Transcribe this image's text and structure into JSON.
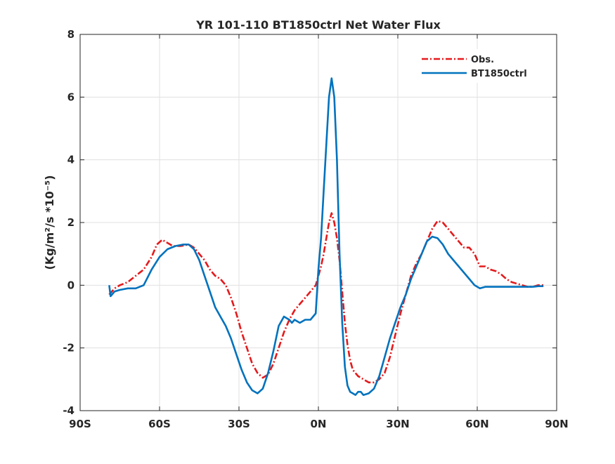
{
  "chart_data": {
    "type": "line",
    "title": "YR 101-110 BT1850ctrl  Net Water Flux",
    "xlabel": "",
    "ylabel": "(Kg/m²/s *10⁻⁵)",
    "xlim": [
      -90,
      90
    ],
    "ylim": [
      -4,
      8
    ],
    "x_ticks": [
      -90,
      -60,
      -30,
      0,
      30,
      60,
      90
    ],
    "x_tick_labels": [
      "90S",
      "60S",
      "30S",
      "0N",
      "30N",
      "60N",
      "90N"
    ],
    "y_ticks": [
      -4,
      -2,
      0,
      2,
      4,
      6,
      8
    ],
    "y_tick_labels": [
      "-4",
      "-2",
      "0",
      "2",
      "4",
      "6",
      "8"
    ],
    "grid": true,
    "legend_position": "top-right",
    "series": [
      {
        "name": "Obs.",
        "color": "#e41a1c",
        "style": "dashdot",
        "x": [
          -79,
          -77,
          -75,
          -72,
          -69,
          -66,
          -63,
          -61,
          -59,
          -57,
          -55,
          -52,
          -49,
          -47,
          -45,
          -43,
          -41,
          -39,
          -37,
          -35,
          -33,
          -31,
          -29,
          -27,
          -25,
          -23,
          -21,
          -19,
          -17,
          -15,
          -13,
          -11,
          -9,
          -7,
          -5,
          -3,
          -1,
          0,
          1,
          2,
          3,
          4,
          5,
          6,
          7,
          8,
          9,
          10,
          11,
          12,
          13,
          14,
          15,
          17,
          19,
          21,
          23,
          25,
          27,
          29,
          31,
          33,
          35,
          37,
          39,
          41,
          43,
          45,
          47,
          49,
          51,
          53,
          55,
          57,
          59,
          61,
          63,
          65,
          67,
          69,
          71,
          73,
          75,
          77,
          79,
          81,
          83,
          85
        ],
        "y": [
          -0.3,
          -0.1,
          0.0,
          0.1,
          0.3,
          0.5,
          0.9,
          1.3,
          1.45,
          1.35,
          1.25,
          1.25,
          1.3,
          1.2,
          1.0,
          0.8,
          0.5,
          0.3,
          0.2,
          0.0,
          -0.4,
          -0.9,
          -1.5,
          -2.0,
          -2.5,
          -2.8,
          -2.95,
          -2.85,
          -2.5,
          -2.0,
          -1.5,
          -1.1,
          -0.8,
          -0.6,
          -0.4,
          -0.2,
          0.0,
          0.3,
          0.6,
          1.0,
          1.5,
          2.0,
          2.3,
          2.0,
          1.5,
          0.8,
          -0.2,
          -1.2,
          -1.9,
          -2.4,
          -2.7,
          -2.8,
          -2.9,
          -3.0,
          -3.1,
          -3.1,
          -3.0,
          -2.8,
          -2.3,
          -1.6,
          -0.9,
          -0.3,
          0.3,
          0.7,
          1.0,
          1.4,
          1.8,
          2.05,
          2.0,
          1.8,
          1.6,
          1.4,
          1.2,
          1.2,
          1.0,
          0.6,
          0.6,
          0.5,
          0.45,
          0.35,
          0.2,
          0.1,
          0.05,
          0.0,
          -0.05,
          -0.05,
          0.0,
          0.0
        ]
      },
      {
        "name": "BT1850ctrl",
        "color": "#0072bd",
        "style": "solid",
        "x": [
          -79,
          -78.5,
          -77,
          -75,
          -72,
          -69,
          -66,
          -63,
          -60,
          -57,
          -54,
          -51,
          -49,
          -47,
          -45,
          -43,
          -41,
          -39,
          -37,
          -35,
          -33,
          -31,
          -29,
          -27,
          -25,
          -23,
          -21,
          -19,
          -17,
          -15,
          -13,
          -11,
          -10,
          -9,
          -7,
          -5,
          -3,
          -1,
          0,
          1,
          2,
          3,
          4,
          5,
          6,
          7,
          8,
          9,
          10,
          11,
          12,
          13,
          14,
          15,
          16,
          17,
          19,
          21,
          23,
          25,
          27,
          29,
          31,
          33,
          35,
          37,
          39,
          41,
          43,
          45,
          47,
          49,
          51,
          53,
          55,
          57,
          59,
          61,
          63,
          65,
          67,
          69,
          71,
          73,
          75,
          77,
          79,
          81,
          83,
          85
        ],
        "y": [
          0.0,
          -0.35,
          -0.2,
          -0.15,
          -0.1,
          -0.1,
          0.0,
          0.5,
          0.9,
          1.15,
          1.25,
          1.3,
          1.3,
          1.15,
          0.8,
          0.3,
          -0.2,
          -0.7,
          -1.0,
          -1.3,
          -1.7,
          -2.2,
          -2.7,
          -3.1,
          -3.35,
          -3.45,
          -3.3,
          -2.8,
          -2.1,
          -1.3,
          -1.0,
          -1.1,
          -1.2,
          -1.1,
          -1.2,
          -1.1,
          -1.1,
          -0.9,
          0.5,
          1.5,
          3.0,
          4.5,
          6.0,
          6.6,
          6.0,
          4.0,
          1.0,
          -1.2,
          -2.6,
          -3.2,
          -3.4,
          -3.45,
          -3.5,
          -3.4,
          -3.4,
          -3.5,
          -3.45,
          -3.3,
          -2.9,
          -2.3,
          -1.7,
          -1.2,
          -0.7,
          -0.3,
          0.2,
          0.6,
          1.0,
          1.4,
          1.55,
          1.5,
          1.3,
          1.0,
          0.8,
          0.6,
          0.4,
          0.2,
          0.0,
          -0.1,
          -0.05,
          -0.05,
          -0.05,
          -0.05,
          -0.05,
          -0.05,
          -0.05,
          -0.05,
          -0.05,
          -0.05,
          -0.03,
          -0.03
        ]
      }
    ]
  }
}
